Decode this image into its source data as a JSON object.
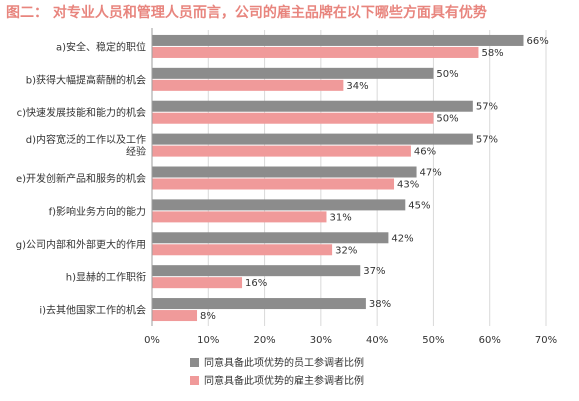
{
  "chart_data": {
    "type": "bar",
    "orientation": "horizontal",
    "title": "图二：  对专业人员和管理人员而言，公司的雇主品牌在以下哪些方面具有优势",
    "categories": [
      [
        "a)安全、稳定的职位"
      ],
      [
        "b)获得大幅提高薪酬的机会"
      ],
      [
        "c)快速发展技能和能力的机会"
      ],
      [
        "d)内容宽泛的工作以及工作",
        "经验"
      ],
      [
        "e)开发创新产品和服务的机会"
      ],
      [
        "f)影响业务方向的能力"
      ],
      [
        "g)公司内部和外部更大的作用"
      ],
      [
        "h)显赫的工作职衔"
      ],
      [
        "i)去其他国家工作的机会"
      ]
    ],
    "series": [
      {
        "name": "同意具备此项优势的员工参调者比例",
        "color": "#8c8c8c",
        "values": [
          66,
          50,
          57,
          57,
          47,
          45,
          42,
          37,
          38
        ]
      },
      {
        "name": "同意具备此项优势的雇主参调者比例",
        "color": "#f09a9a",
        "values": [
          58,
          34,
          50,
          46,
          43,
          31,
          32,
          16,
          8
        ]
      }
    ],
    "value_suffix": "%",
    "xlim": [
      0,
      70
    ],
    "xticks": [
      0,
      10,
      20,
      30,
      40,
      50,
      60,
      70
    ],
    "tick_suffix": "%",
    "grid": true,
    "legend": "bottom"
  }
}
